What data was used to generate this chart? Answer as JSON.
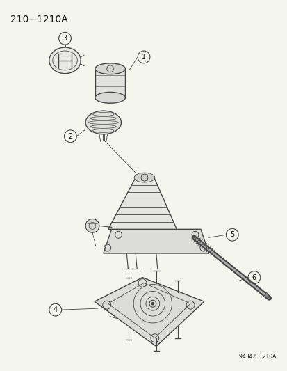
{
  "title": "210−1210A",
  "subtitle_code": "94342  1210A",
  "bg_color": "#f5f5f0",
  "line_color": "#444444",
  "text_color": "#111111",
  "fig_width": 4.14,
  "fig_height": 5.33,
  "dpi": 100
}
